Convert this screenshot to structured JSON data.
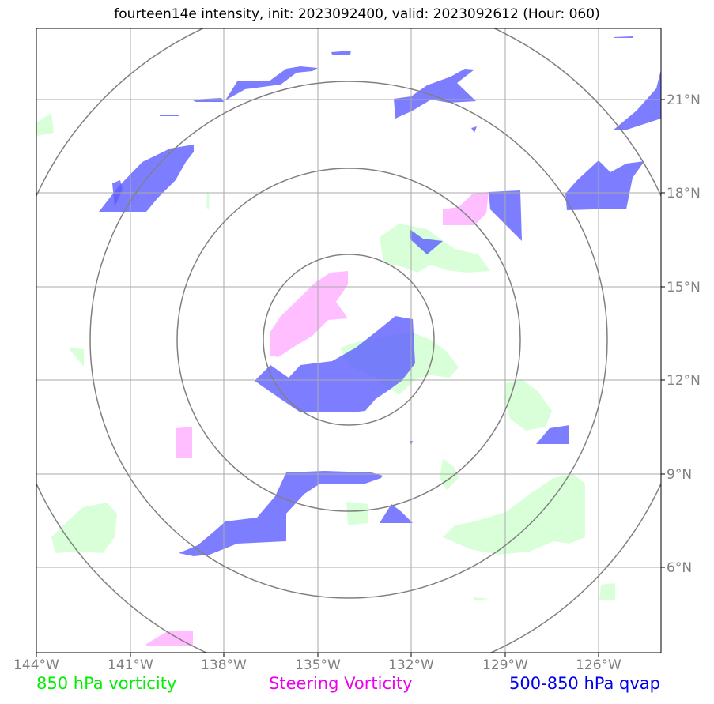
{
  "title": "fourteen14e intensity, init: 2023092400, valid: 2023092612 (Hour: 060)",
  "axes": {
    "lon_ticks": [
      "144°W",
      "141°W",
      "138°W",
      "135°W",
      "132°W",
      "129°W",
      "126°W"
    ],
    "lat_ticks": [
      "21°N",
      "18°N",
      "15°N",
      "12°N",
      "9°N",
      "6°N"
    ]
  },
  "legend": {
    "green": "850 hPa vorticity",
    "magenta": "Steering Vorticity",
    "blue": "500-850 hPa qvap"
  },
  "colors": {
    "vorticity_850": "#ccffcc",
    "steering_vorticity": "#ffb3ff",
    "qvap": "#6666ff",
    "grid": "#aaaaaa",
    "range_rings": "#808080"
  },
  "range_rings_center": "134°W, 13.3°N"
}
